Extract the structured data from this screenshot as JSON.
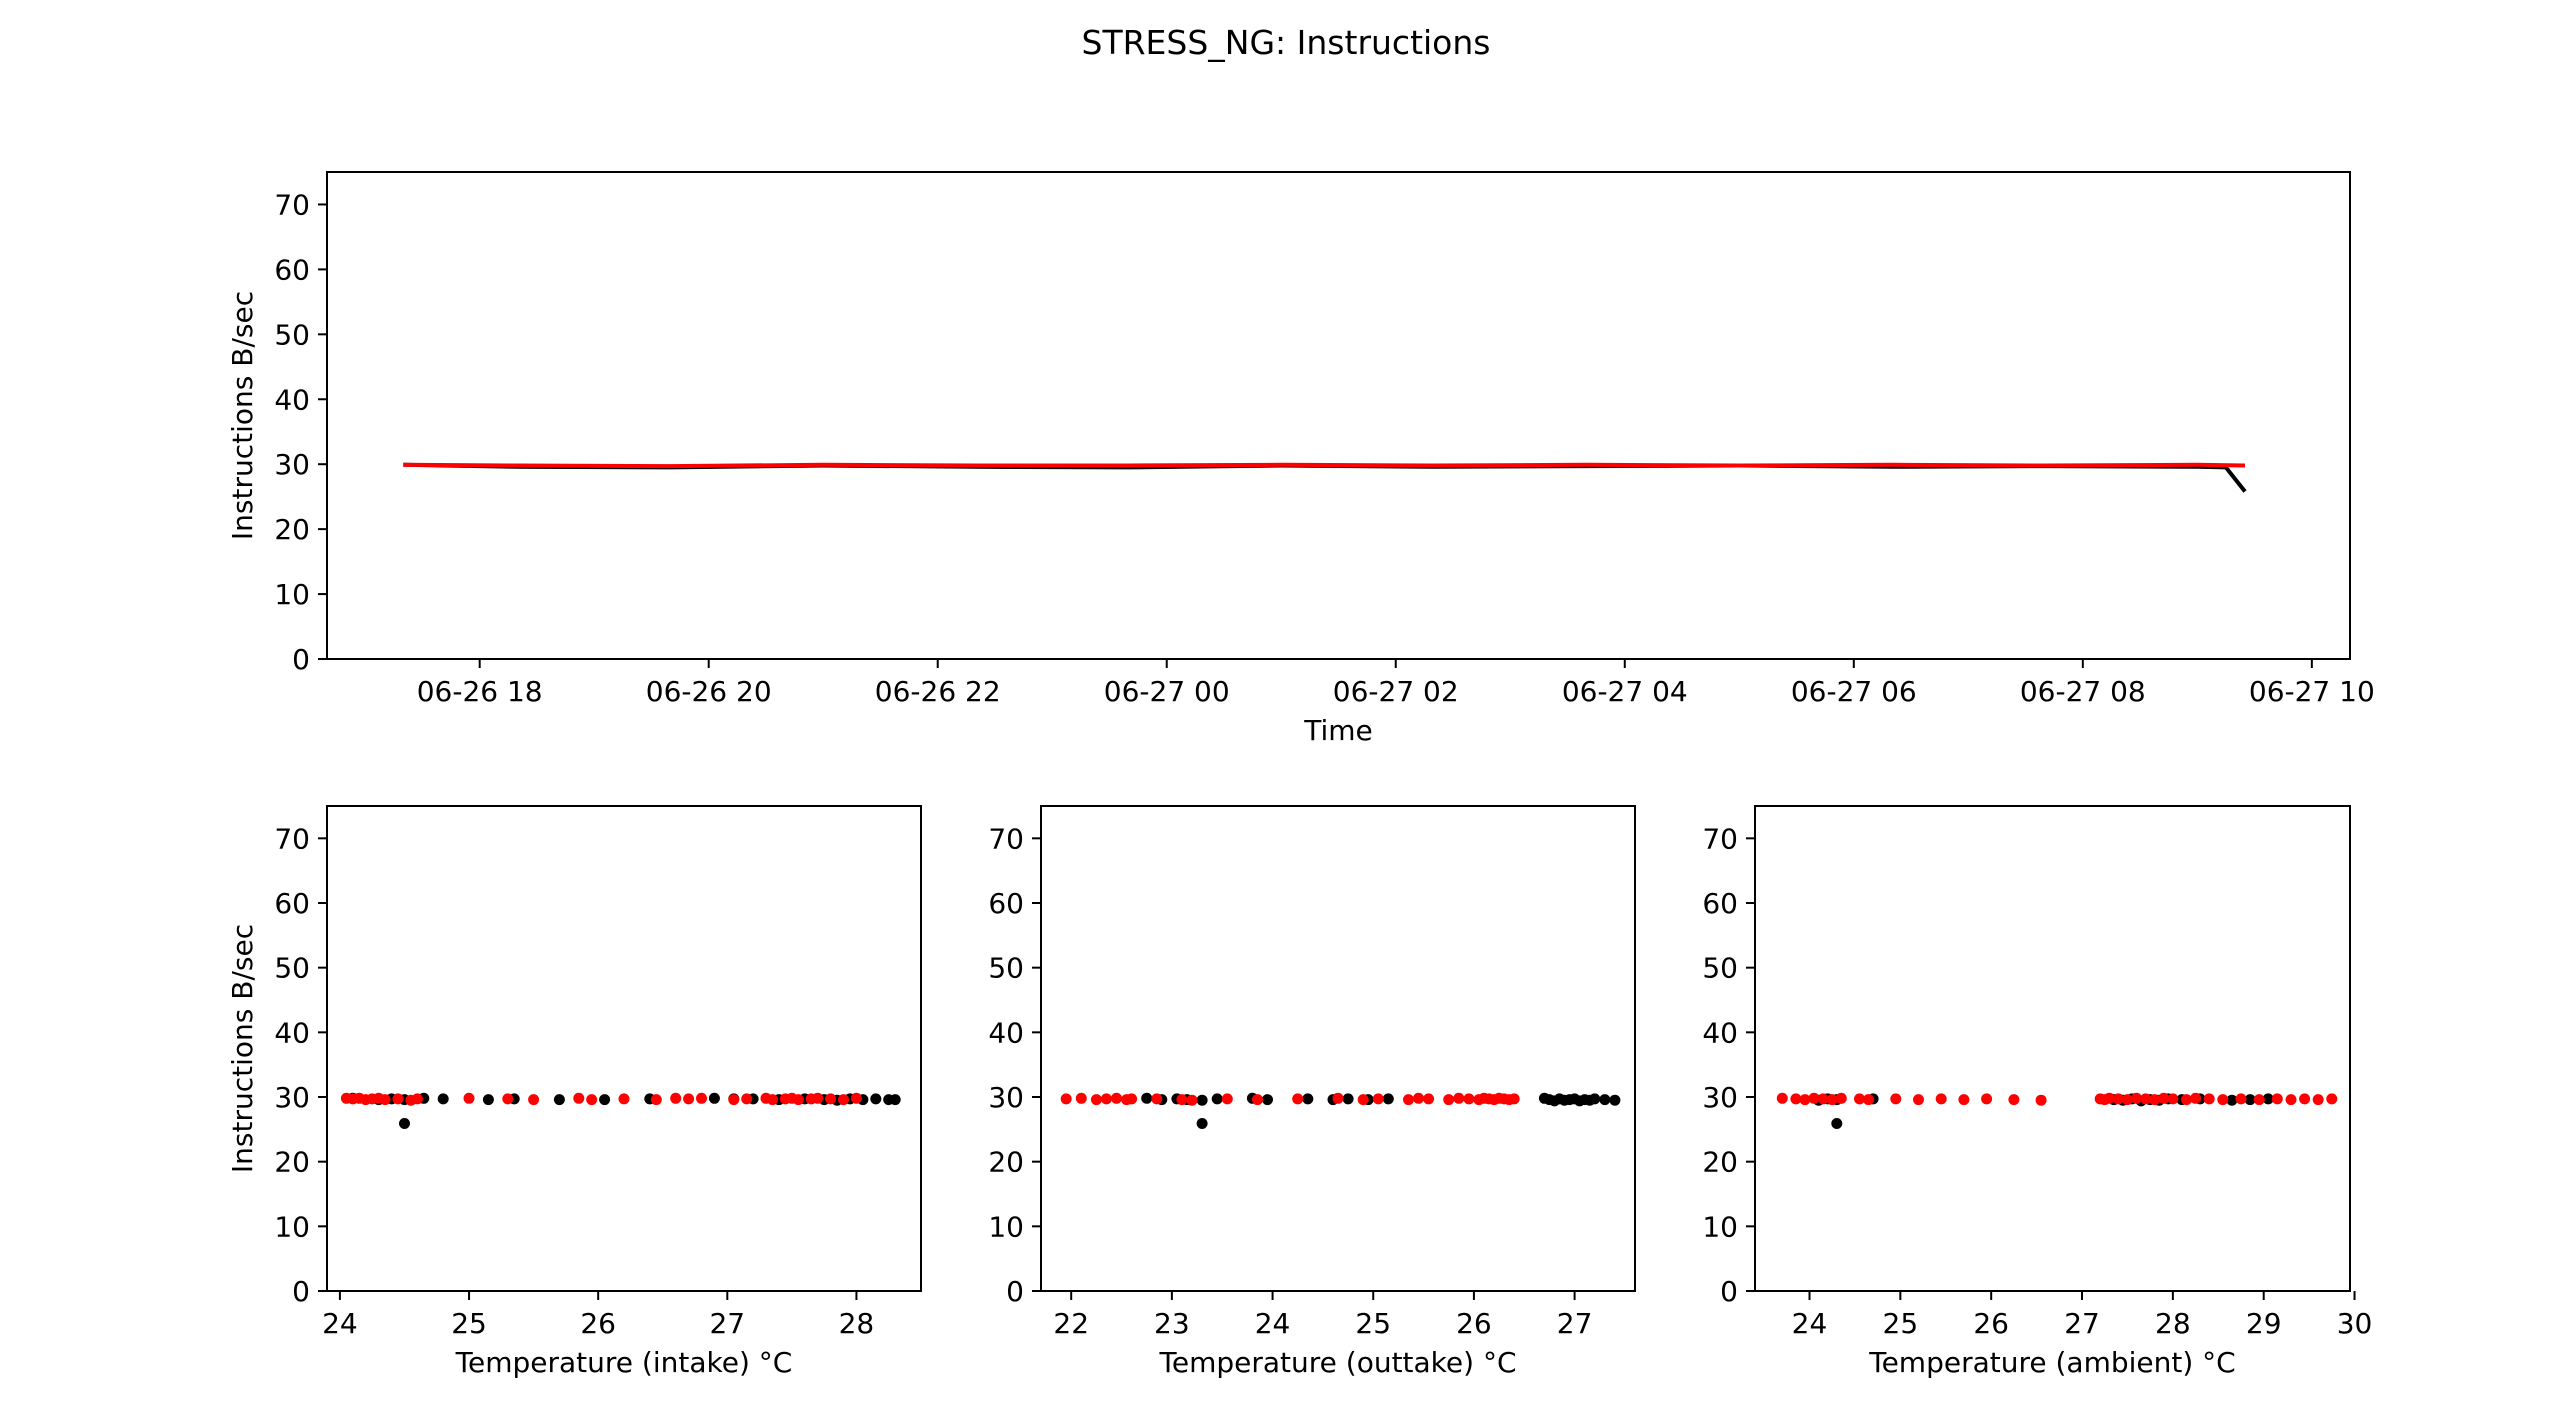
{
  "figure": {
    "title": "STRESS_NG: Instructions"
  },
  "colors": {
    "series_black": "#000000",
    "series_red": "#ff0000",
    "axes": "#000000",
    "background": "#ffffff"
  },
  "chart_data": [
    {
      "id": "timeseries",
      "type": "line",
      "title": "",
      "xlabel": "Time",
      "ylabel": "Instructions B/sec",
      "xlim": [
        "2023-06-26 16:40",
        "2023-06-27 10:20"
      ],
      "ylim": [
        0,
        75
      ],
      "x_ticks": [
        "06-26 18",
        "06-26 20",
        "06-26 22",
        "06-27 00",
        "06-27 02",
        "06-27 04",
        "06-27 06",
        "06-27 08",
        "06-27 10"
      ],
      "x_tick_values": [
        "2023-06-26 18:00",
        "2023-06-26 20:00",
        "2023-06-26 22:00",
        "2023-06-27 00:00",
        "2023-06-27 02:00",
        "2023-06-27 04:00",
        "2023-06-27 06:00",
        "2023-06-27 08:00",
        "2023-06-27 10:00"
      ],
      "y_ticks": [
        0,
        10,
        20,
        30,
        40,
        50,
        60,
        70
      ],
      "grid": false,
      "series": [
        {
          "color": "#000000",
          "x": [
            "2023-06-26 17:20",
            "2023-06-26 18:20",
            "2023-06-26 19:40",
            "2023-06-26 21:00",
            "2023-06-26 22:20",
            "2023-06-26 23:40",
            "2023-06-27 01:00",
            "2023-06-27 02:20",
            "2023-06-27 03:40",
            "2023-06-27 05:00",
            "2023-06-27 06:20",
            "2023-06-27 07:40",
            "2023-06-27 09:00",
            "2023-06-27 09:15",
            "2023-06-27 09:25"
          ],
          "y": [
            29.9,
            29.6,
            29.5,
            29.8,
            29.6,
            29.5,
            29.8,
            29.6,
            29.7,
            29.8,
            29.6,
            29.7,
            29.6,
            29.5,
            25.8
          ]
        },
        {
          "color": "#ff0000",
          "x": [
            "2023-06-26 17:20",
            "2023-06-26 18:20",
            "2023-06-26 19:40",
            "2023-06-26 21:00",
            "2023-06-26 22:20",
            "2023-06-26 23:40",
            "2023-06-27 01:00",
            "2023-06-27 02:20",
            "2023-06-27 03:40",
            "2023-06-27 05:00",
            "2023-06-27 06:20",
            "2023-06-27 07:40",
            "2023-06-27 09:00",
            "2023-06-27 09:25"
          ],
          "y": [
            29.9,
            29.8,
            29.7,
            29.9,
            29.8,
            29.8,
            29.9,
            29.8,
            29.9,
            29.8,
            29.9,
            29.8,
            29.9,
            29.8
          ]
        }
      ]
    },
    {
      "id": "intake",
      "type": "scatter",
      "xlabel": "Temperature (intake) °C",
      "ylabel": "Instructions B/sec",
      "xlim": [
        23.9,
        28.5
      ],
      "ylim": [
        0,
        75
      ],
      "x_ticks": [
        24,
        25,
        26,
        27,
        28
      ],
      "y_ticks": [
        0,
        10,
        20,
        30,
        40,
        50,
        60,
        70
      ],
      "grid": false,
      "series": [
        {
          "color": "#000000",
          "x": [
            24.1,
            24.3,
            24.4,
            24.5,
            24.5,
            24.65,
            24.8,
            25.15,
            25.35,
            25.7,
            26.05,
            26.4,
            26.9,
            27.05,
            27.2,
            27.4,
            27.6,
            27.75,
            27.85,
            27.95,
            28.05,
            28.15,
            28.25,
            28.3
          ],
          "y": [
            29.8,
            29.6,
            29.7,
            29.6,
            25.9,
            29.8,
            29.7,
            29.6,
            29.7,
            29.6,
            29.6,
            29.7,
            29.8,
            29.7,
            29.7,
            29.6,
            29.7,
            29.6,
            29.5,
            29.7,
            29.6,
            29.7,
            29.6,
            29.6
          ]
        },
        {
          "color": "#ff0000",
          "x": [
            24.05,
            24.1,
            24.15,
            24.2,
            24.25,
            24.3,
            24.35,
            24.45,
            24.55,
            24.6,
            25.0,
            25.3,
            25.5,
            25.85,
            25.95,
            26.2,
            26.45,
            26.6,
            26.7,
            26.8,
            27.05,
            27.15,
            27.3,
            27.35,
            27.45,
            27.5,
            27.55,
            27.65,
            27.7,
            27.8,
            27.9,
            28.0
          ],
          "y": [
            29.8,
            29.7,
            29.8,
            29.6,
            29.7,
            29.8,
            29.6,
            29.7,
            29.5,
            29.7,
            29.8,
            29.7,
            29.6,
            29.8,
            29.6,
            29.7,
            29.6,
            29.8,
            29.7,
            29.8,
            29.6,
            29.7,
            29.8,
            29.6,
            29.7,
            29.8,
            29.6,
            29.7,
            29.8,
            29.7,
            29.6,
            29.8
          ]
        }
      ]
    },
    {
      "id": "outtake",
      "type": "scatter",
      "xlabel": "Temperature (outtake) °C",
      "ylabel": "",
      "xlim": [
        21.7,
        27.6
      ],
      "ylim": [
        0,
        75
      ],
      "x_ticks": [
        22,
        23,
        24,
        25,
        26,
        27
      ],
      "y_ticks": [
        0,
        10,
        20,
        30,
        40,
        50,
        60,
        70
      ],
      "grid": false,
      "series": [
        {
          "color": "#000000",
          "x": [
            22.75,
            22.9,
            23.05,
            23.15,
            23.3,
            23.3,
            23.45,
            23.8,
            23.95,
            24.35,
            24.6,
            24.75,
            24.95,
            25.15,
            26.7,
            26.75,
            26.8,
            26.85,
            26.9,
            26.95,
            27.0,
            27.05,
            27.1,
            27.15,
            27.2,
            27.3,
            27.4
          ],
          "y": [
            29.8,
            29.6,
            29.7,
            29.6,
            29.5,
            25.9,
            29.7,
            29.8,
            29.6,
            29.7,
            29.6,
            29.7,
            29.6,
            29.7,
            29.8,
            29.6,
            29.4,
            29.7,
            29.5,
            29.6,
            29.7,
            29.4,
            29.6,
            29.5,
            29.7,
            29.6,
            29.5
          ]
        },
        {
          "color": "#ff0000",
          "x": [
            21.95,
            22.1,
            22.25,
            22.35,
            22.45,
            22.55,
            22.6,
            22.85,
            23.1,
            23.2,
            23.55,
            23.85,
            24.25,
            24.65,
            24.9,
            25.05,
            25.35,
            25.45,
            25.55,
            25.75,
            25.85,
            25.95,
            26.05,
            26.1,
            26.15,
            26.2,
            26.25,
            26.3,
            26.35,
            26.4
          ],
          "y": [
            29.7,
            29.8,
            29.6,
            29.7,
            29.8,
            29.6,
            29.7,
            29.7,
            29.6,
            29.5,
            29.7,
            29.6,
            29.7,
            29.8,
            29.6,
            29.7,
            29.6,
            29.8,
            29.7,
            29.6,
            29.8,
            29.7,
            29.6,
            29.8,
            29.7,
            29.6,
            29.8,
            29.7,
            29.6,
            29.7
          ]
        }
      ]
    },
    {
      "id": "ambient",
      "type": "scatter",
      "xlabel": "Temperature (ambient) °C",
      "ylabel": "",
      "xlim": [
        23.4,
        29.95
      ],
      "ylim": [
        0,
        75
      ],
      "x_ticks": [
        24,
        25,
        26,
        27,
        28,
        29,
        30
      ],
      "y_ticks": [
        0,
        10,
        20,
        30,
        40,
        50,
        60,
        70
      ],
      "grid": false,
      "series": [
        {
          "color": "#000000",
          "x": [
            24.1,
            24.2,
            24.3,
            24.3,
            24.7,
            27.35,
            27.45,
            27.55,
            27.65,
            27.75,
            27.85,
            27.95,
            28.1,
            28.3,
            28.65,
            28.85,
            29.05
          ],
          "y": [
            29.5,
            29.7,
            29.6,
            25.9,
            29.7,
            29.6,
            29.5,
            29.7,
            29.4,
            29.6,
            29.5,
            29.7,
            29.6,
            29.7,
            29.5,
            29.6,
            29.7
          ]
        },
        {
          "color": "#ff0000",
          "x": [
            23.7,
            23.85,
            23.95,
            24.05,
            24.15,
            24.25,
            24.35,
            24.55,
            24.65,
            24.95,
            25.2,
            25.45,
            25.7,
            25.95,
            26.25,
            26.55,
            27.2,
            27.25,
            27.3,
            27.4,
            27.5,
            27.6,
            27.7,
            27.8,
            27.9,
            28.0,
            28.15,
            28.25,
            28.4,
            28.55,
            28.75,
            28.95,
            29.15,
            29.3,
            29.45,
            29.6,
            29.75
          ],
          "y": [
            29.8,
            29.7,
            29.6,
            29.8,
            29.7,
            29.6,
            29.8,
            29.7,
            29.6,
            29.7,
            29.6,
            29.7,
            29.6,
            29.7,
            29.6,
            29.5,
            29.7,
            29.6,
            29.8,
            29.7,
            29.6,
            29.8,
            29.7,
            29.6,
            29.8,
            29.7,
            29.6,
            29.8,
            29.7,
            29.6,
            29.7,
            29.6,
            29.7,
            29.6,
            29.7,
            29.6,
            29.7
          ]
        }
      ]
    }
  ]
}
